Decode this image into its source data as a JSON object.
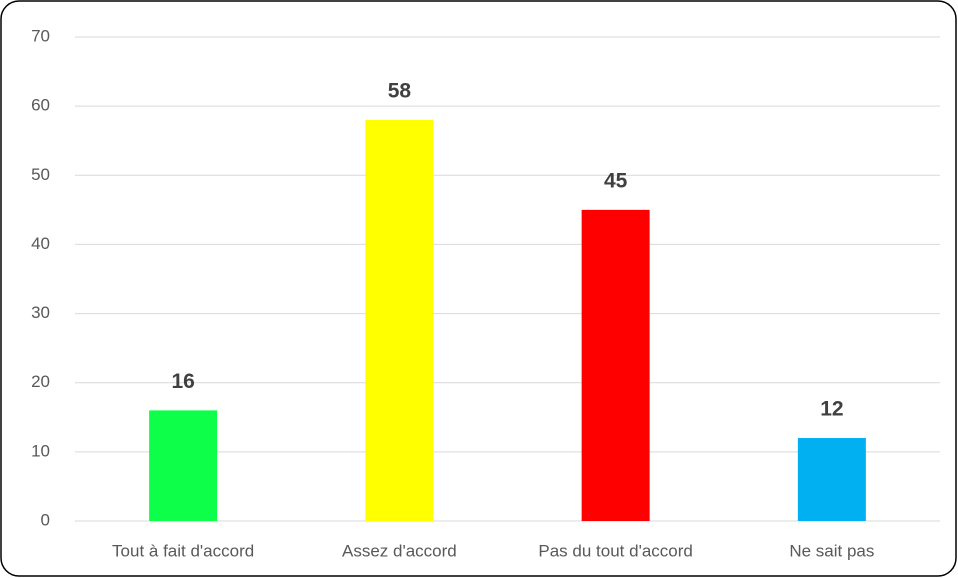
{
  "chart_data": {
    "type": "bar",
    "categories": [
      "Tout à fait d'accord",
      "Assez d'accord",
      "Pas du tout d'accord",
      "Ne sait pas"
    ],
    "values": [
      16,
      58,
      45,
      12
    ],
    "colors": [
      "#0dff4a",
      "#ffff00",
      "#ff0000",
      "#00b0f0"
    ],
    "ylim": [
      0,
      70
    ],
    "yticks": [
      0,
      10,
      20,
      30,
      40,
      50,
      60,
      70
    ],
    "grid": true,
    "data_labels": true
  }
}
